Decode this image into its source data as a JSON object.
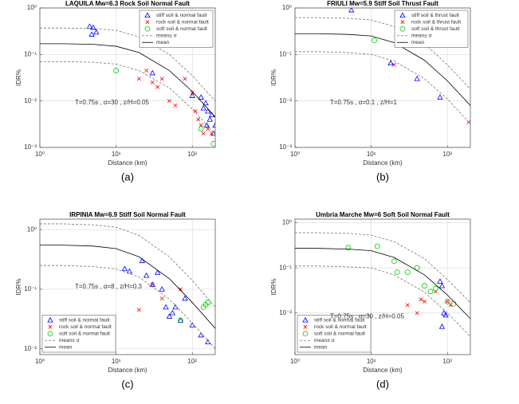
{
  "chart_data": [
    {
      "type": "scatter",
      "title": "LAQUILA Mw=6.3 Rock Soil Normal Fault",
      "xlabel": "Distance (km)",
      "ylabel": "IDR%",
      "annotation": "T=0.75s , α=30 , z/H=0.05",
      "caption": "(a)",
      "log_x": true,
      "log_y": true,
      "grid": true,
      "legend": "upper right",
      "xlim": [
        1,
        200
      ],
      "ylim": [
        0.001,
        1
      ],
      "xticks": [
        {
          "value": 1,
          "label": "10⁰"
        },
        {
          "value": 10,
          "label": "10¹"
        },
        {
          "value": 100,
          "label": "10²"
        }
      ],
      "yticks": [
        {
          "value": 0.001,
          "label": "10⁻³"
        },
        {
          "value": 0.01,
          "label": "10⁻²"
        },
        {
          "value": 0.1,
          "label": "10⁻¹"
        },
        {
          "value": 1,
          "label": "10⁰"
        }
      ],
      "series": [
        {
          "name": "stiff soil & normal fault",
          "marker": "triangle",
          "color": "#0000ff",
          "x": [
            4.5,
            5,
            4.8,
            5.5,
            30,
            100,
            130,
            140,
            150,
            160,
            170,
            180,
            190,
            200,
            155
          ],
          "values": [
            0.4,
            0.38,
            0.27,
            0.3,
            0.04,
            0.013,
            0.012,
            0.007,
            0.009,
            0.006,
            0.004,
            0.005,
            0.002,
            0.003,
            0.003
          ]
        },
        {
          "name": "rock soil & normal fault",
          "marker": "x",
          "color": "#ff0000",
          "x": [
            20,
            25,
            30,
            35,
            40,
            50,
            60,
            80,
            100,
            110,
            120,
            130,
            140,
            160,
            180
          ],
          "values": [
            0.03,
            0.045,
            0.025,
            0.02,
            0.03,
            0.01,
            0.008,
            0.03,
            0.015,
            0.006,
            0.004,
            0.003,
            0.002,
            0.0025,
            0.002
          ]
        },
        {
          "name": "soft soil & normal fault",
          "marker": "circle",
          "color": "#00cc00",
          "x": [
            10,
            130,
            190
          ],
          "values": [
            0.045,
            0.0025,
            0.0012
          ]
        },
        {
          "name": "mean± σ",
          "color": "#777777",
          "dashed": true,
          "x": [
            1,
            2,
            5,
            10,
            20,
            50,
            100,
            200
          ],
          "lines": [
            [
              0.37,
              0.37,
              0.36,
              0.33,
              0.24,
              0.1,
              0.035,
              0.01
            ],
            [
              0.07,
              0.07,
              0.068,
              0.062,
              0.045,
              0.019,
              0.0067,
              0.0019
            ]
          ]
        },
        {
          "name": "mean",
          "color": "#000000",
          "x": [
            1,
            2,
            5,
            10,
            20,
            50,
            100,
            200
          ],
          "values": [
            0.17,
            0.17,
            0.165,
            0.15,
            0.11,
            0.045,
            0.016,
            0.0045
          ]
        }
      ]
    },
    {
      "type": "scatter",
      "title": "FRIULI Mw=5.9 Stiff Soil Thrust Fault",
      "xlabel": "Distance (km)",
      "ylabel": "IDR%",
      "annotation": "T=0.75s , α=0.1 , z/H=1",
      "caption": "(b)",
      "log_x": true,
      "log_y": true,
      "grid": true,
      "legend": "upper right",
      "xlim": [
        1,
        200
      ],
      "ylim": [
        0.001,
        1
      ],
      "xticks": [
        {
          "value": 1,
          "label": "10⁰"
        },
        {
          "value": 10,
          "label": "10¹"
        },
        {
          "value": 100,
          "label": "10²"
        }
      ],
      "yticks": [
        {
          "value": 0.001,
          "label": "10⁻³"
        },
        {
          "value": 0.01,
          "label": "10⁻²"
        },
        {
          "value": 0.1,
          "label": "10⁻¹"
        },
        {
          "value": 1,
          "label": "10⁰"
        }
      ],
      "series": [
        {
          "name": "stiff soil & thrust fault",
          "marker": "triangle",
          "color": "#0000ff",
          "x": [
            5.5,
            18,
            40,
            80
          ],
          "values": [
            0.9,
            0.065,
            0.03,
            0.012
          ]
        },
        {
          "name": "rock soil & thrust fault",
          "marker": "x",
          "color": "#ff0000",
          "x": [
            20,
            190
          ],
          "values": [
            0.06,
            0.0035
          ]
        },
        {
          "name": "soft soil & thrust fault",
          "marker": "circle",
          "color": "#00cc00",
          "x": [
            11
          ],
          "values": [
            0.2
          ]
        },
        {
          "name": "mean± σ",
          "color": "#777777",
          "dashed": true,
          "x": [
            1,
            2,
            5,
            10,
            20,
            50,
            100,
            200
          ],
          "lines": [
            [
              0.62,
              0.62,
              0.6,
              0.55,
              0.4,
              0.17,
              0.06,
              0.018
            ],
            [
              0.115,
              0.115,
              0.11,
              0.1,
              0.072,
              0.03,
              0.011,
              0.0032
            ]
          ]
        },
        {
          "name": "mean",
          "color": "#000000",
          "x": [
            1,
            2,
            5,
            10,
            20,
            50,
            100,
            200
          ],
          "values": [
            0.28,
            0.28,
            0.27,
            0.25,
            0.18,
            0.075,
            0.027,
            0.008
          ]
        }
      ]
    },
    {
      "type": "scatter",
      "title": "IRPINIA Mw=6.9 Stiff Soil Normal Fault",
      "xlabel": "Distance (km)",
      "ylabel": "IDR%",
      "annotation": "T=0.75s , α=8 , z/H=0.3",
      "caption": "(c)",
      "log_x": true,
      "log_y": true,
      "grid": true,
      "legend": "lower left",
      "xlim": [
        1,
        200
      ],
      "ylim": [
        0.008,
        1.5
      ],
      "xticks": [
        {
          "value": 1,
          "label": "10⁰"
        },
        {
          "value": 10,
          "label": "10¹"
        },
        {
          "value": 100,
          "label": "10²"
        }
      ],
      "yticks": [
        {
          "value": 0.01,
          "label": "10⁻²"
        },
        {
          "value": 0.1,
          "label": "10⁻¹"
        },
        {
          "value": 1,
          "label": "10⁰"
        }
      ],
      "series": [
        {
          "name": "stiff soil & normal fault",
          "marker": "triangle",
          "color": "#0000ff",
          "x": [
            13,
            15,
            22,
            25,
            30,
            35,
            40,
            45,
            50,
            55,
            60,
            70,
            80,
            100,
            130,
            160
          ],
          "values": [
            0.22,
            0.2,
            0.3,
            0.17,
            0.12,
            0.19,
            0.1,
            0.05,
            0.035,
            0.04,
            0.05,
            0.03,
            0.07,
            0.025,
            0.017,
            0.013
          ]
        },
        {
          "name": "rock soil & normal fault",
          "marker": "x",
          "color": "#ff0000",
          "x": [
            20,
            30,
            40,
            70
          ],
          "values": [
            0.045,
            0.12,
            0.07,
            0.1
          ]
        },
        {
          "name": "soft soil & normal fault",
          "marker": "circle",
          "color": "#00cc00",
          "x": [
            70,
            140,
            150,
            160
          ],
          "values": [
            0.03,
            0.05,
            0.055,
            0.06
          ]
        },
        {
          "name": "mean± σ",
          "color": "#777777",
          "dashed": true,
          "x": [
            1,
            2,
            5,
            10,
            20,
            50,
            100,
            200
          ],
          "lines": [
            [
              1.25,
              1.25,
              1.2,
              1.1,
              0.8,
              0.35,
              0.14,
              0.05
            ],
            [
              0.25,
              0.25,
              0.24,
              0.22,
              0.16,
              0.068,
              0.027,
              0.01
            ]
          ]
        },
        {
          "name": "mean",
          "color": "#000000",
          "x": [
            1,
            2,
            5,
            10,
            20,
            50,
            100,
            200
          ],
          "values": [
            0.55,
            0.55,
            0.53,
            0.48,
            0.35,
            0.15,
            0.06,
            0.022
          ]
        }
      ]
    },
    {
      "type": "scatter",
      "title": "Umbria Marche Mw=6 Soft Soil Normal Fault",
      "xlabel": "Distance (km)",
      "ylabel": "IDR%",
      "annotation": "T=0.75s , α=30 , z/H=0.05",
      "caption": "(d)",
      "log_x": true,
      "log_y": true,
      "grid": true,
      "legend": "lower left",
      "xlim": [
        1,
        200
      ],
      "ylim": [
        0.0012,
        1.2
      ],
      "xticks": [
        {
          "value": 1,
          "label": "10⁰"
        },
        {
          "value": 10,
          "label": "10¹"
        },
        {
          "value": 100,
          "label": "10²"
        }
      ],
      "yticks": [
        {
          "value": 0.01,
          "label": "10⁻²"
        },
        {
          "value": 0.1,
          "label": "10⁻¹"
        },
        {
          "value": 1,
          "label": "10⁰"
        }
      ],
      "series": [
        {
          "name": "stiff soil & normal fault",
          "marker": "triangle",
          "color": "#0000ff",
          "x": [
            80,
            85,
            90,
            95,
            85
          ],
          "values": [
            0.05,
            0.04,
            0.01,
            0.009,
            0.005
          ]
        },
        {
          "name": "rock soil & normal fault",
          "marker": "x",
          "color": "#ff0000",
          "x": [
            30,
            40,
            45,
            50,
            70,
            100,
            110
          ],
          "values": [
            0.015,
            0.01,
            0.02,
            0.018,
            0.03,
            0.018,
            0.015
          ]
        },
        {
          "name": "soft soil & normal fault",
          "marker": "circle",
          "color": "#00cc00",
          "x": [
            5,
            12,
            20,
            22,
            30,
            40,
            50,
            60,
            70,
            100,
            120
          ],
          "values": [
            0.28,
            0.3,
            0.14,
            0.08,
            0.08,
            0.1,
            0.04,
            0.03,
            0.035,
            0.018,
            0.016
          ]
        },
        {
          "name": "mean± σ",
          "color": "#777777",
          "dashed": true,
          "x": [
            1,
            2,
            5,
            10,
            20,
            50,
            100,
            200
          ],
          "lines": [
            [
              0.6,
              0.6,
              0.58,
              0.53,
              0.38,
              0.16,
              0.055,
              0.017
            ],
            [
              0.11,
              0.11,
              0.105,
              0.1,
              0.07,
              0.029,
              0.01,
              0.003
            ]
          ]
        },
        {
          "name": "mean",
          "color": "#000000",
          "x": [
            1,
            2,
            5,
            10,
            20,
            50,
            100,
            200
          ],
          "values": [
            0.27,
            0.27,
            0.26,
            0.24,
            0.17,
            0.07,
            0.025,
            0.0075
          ]
        }
      ]
    }
  ]
}
